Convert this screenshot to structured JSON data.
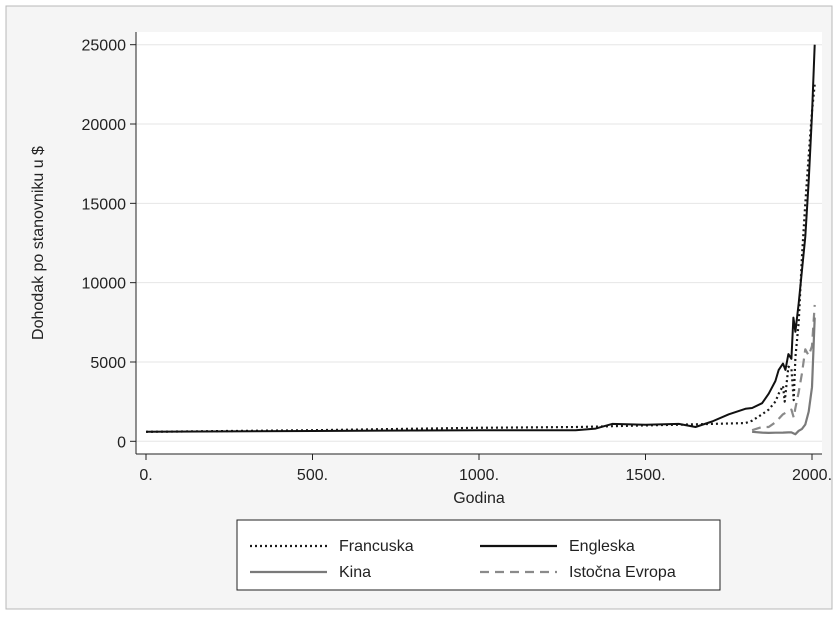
{
  "chart_data": {
    "type": "line",
    "title": "",
    "xlabel": "Godina",
    "ylabel": "Dohodak po stanovniku u $",
    "xlim": [
      -30,
      2030
    ],
    "ylim": [
      -800,
      25800
    ],
    "x_ticks": [
      0,
      500,
      1000,
      1500,
      2000
    ],
    "x_tick_labels": [
      "0.",
      "500.",
      "1000.",
      "1500.",
      "2000."
    ],
    "y_ticks": [
      0,
      5000,
      10000,
      15000,
      20000,
      25000
    ],
    "y_tick_labels": [
      "0",
      "5000",
      "10000",
      "15000",
      "20000",
      "25000"
    ],
    "grid": true,
    "legend_position": "bottom",
    "series": [
      {
        "name": "Francuska",
        "style": "dotted",
        "color": "#1a1a1a",
        "x": [
          0,
          500,
          1000,
          1300,
          1400,
          1500,
          1600,
          1700,
          1800,
          1820,
          1850,
          1870,
          1890,
          1900,
          1913,
          1918,
          1929,
          1938,
          1945,
          1950,
          1960,
          1970,
          1980,
          1990,
          2000,
          2008
        ],
        "y": [
          600,
          700,
          850,
          900,
          950,
          1000,
          1050,
          1100,
          1150,
          1300,
          1700,
          2000,
          2500,
          3000,
          3500,
          2500,
          4700,
          4600,
          2600,
          5300,
          7500,
          11700,
          15000,
          18000,
          20800,
          22500
        ]
      },
      {
        "name": "Engleska",
        "style": "solid",
        "color": "#111111",
        "x": [
          0,
          500,
          1000,
          1200,
          1290,
          1350,
          1400,
          1500,
          1600,
          1650,
          1700,
          1750,
          1800,
          1820,
          1850,
          1870,
          1890,
          1900,
          1913,
          1920,
          1929,
          1938,
          1944,
          1950,
          1960,
          1970,
          1980,
          1990,
          2000,
          2008
        ],
        "y": [
          600,
          650,
          700,
          700,
          700,
          800,
          1100,
          1050,
          1100,
          900,
          1250,
          1700,
          2050,
          2100,
          2400,
          3000,
          3800,
          4500,
          4900,
          4500,
          5500,
          5200,
          7800,
          6900,
          8700,
          10800,
          12900,
          16400,
          20600,
          25000
        ]
      },
      {
        "name": "Kina",
        "style": "solid",
        "color": "#7a7a7a",
        "x": [
          1820,
          1850,
          1870,
          1890,
          1913,
          1929,
          1938,
          1950,
          1960,
          1970,
          1980,
          1990,
          2000,
          2008
        ],
        "y": [
          600,
          550,
          530,
          540,
          550,
          560,
          560,
          450,
          660,
          780,
          1060,
          1870,
          3420,
          7800
        ]
      },
      {
        "name": "Istočna Evropa",
        "style": "dashed",
        "color": "#8a8a8a",
        "x": [
          1820,
          1850,
          1870,
          1890,
          1913,
          1929,
          1938,
          1945,
          1950,
          1960,
          1970,
          1980,
          1990,
          2000,
          2008
        ],
        "y": [
          700,
          900,
          900,
          1200,
          1700,
          1900,
          2000,
          1500,
          2100,
          3100,
          4300,
          5800,
          5400,
          6000,
          8600
        ]
      }
    ]
  }
}
